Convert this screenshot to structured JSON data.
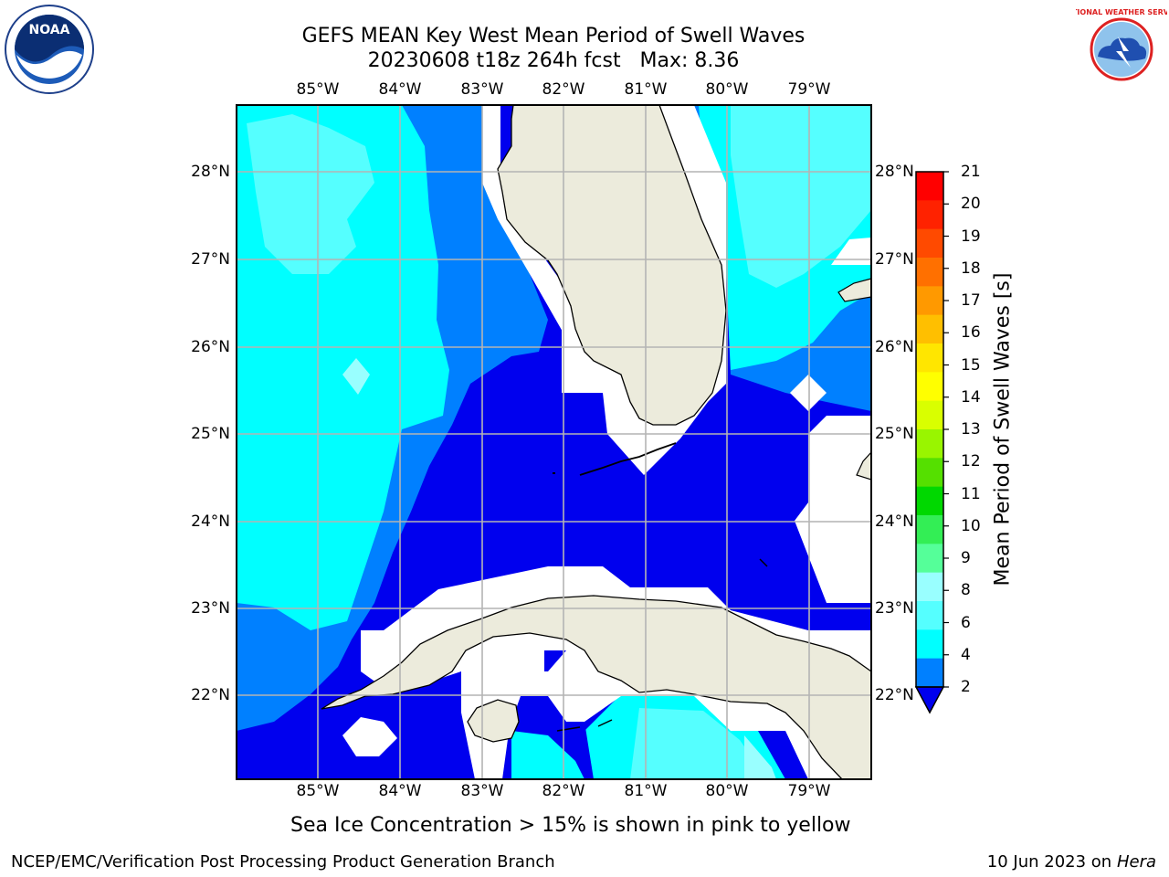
{
  "title": {
    "line1": "GEFS MEAN Key West Mean Period of Swell Waves",
    "line2": "20230608 t18z 264h fcst   Max: 8.36"
  },
  "map": {
    "longitude_labels": [
      "85°W",
      "84°W",
      "83°W",
      "82°W",
      "81°W",
      "80°W",
      "79°W"
    ],
    "latitude_labels": [
      "28°N",
      "27°N",
      "26°N",
      "25°N",
      "24°N",
      "23°N",
      "22°N"
    ]
  },
  "colorbar": {
    "title": "Mean Period of Swell Waves [s]",
    "tick_labels": [
      "21",
      "20",
      "19",
      "18",
      "17",
      "16",
      "15",
      "14",
      "13",
      "12",
      "11",
      "10",
      "9",
      "8",
      "6",
      "4",
      "2"
    ],
    "colors": [
      "#ff0000",
      "#ff2200",
      "#ff4a00",
      "#ff7000",
      "#ff9900",
      "#ffbf00",
      "#ffe600",
      "#ffff00",
      "#d9ff00",
      "#99f500",
      "#55e000",
      "#00d800",
      "#33ee55",
      "#55ff99",
      "#99ffff",
      "#55ffff",
      "#00ffff",
      "#0080ff"
    ],
    "extend_color": "#0000ee"
  },
  "swell_colors": {
    "dark_blue": "#0000ee",
    "medium_blue": "#0080ff",
    "cyan": "#00ffff",
    "light_cyan": "#55ffff",
    "pale_cyan": "#99ffff",
    "land": "#ecebdc"
  },
  "notes": {
    "ice": "Sea Ice Concentration > 15% is shown in pink to yellow"
  },
  "footer": {
    "left": "NCEP/EMC/Verification Post Processing Product Generation Branch",
    "date": "10 Jun 2023 on",
    "host": "Hera"
  },
  "logos": {
    "noaa": "NOAA",
    "nws": "NATIONAL WEATHER SERVICE"
  }
}
